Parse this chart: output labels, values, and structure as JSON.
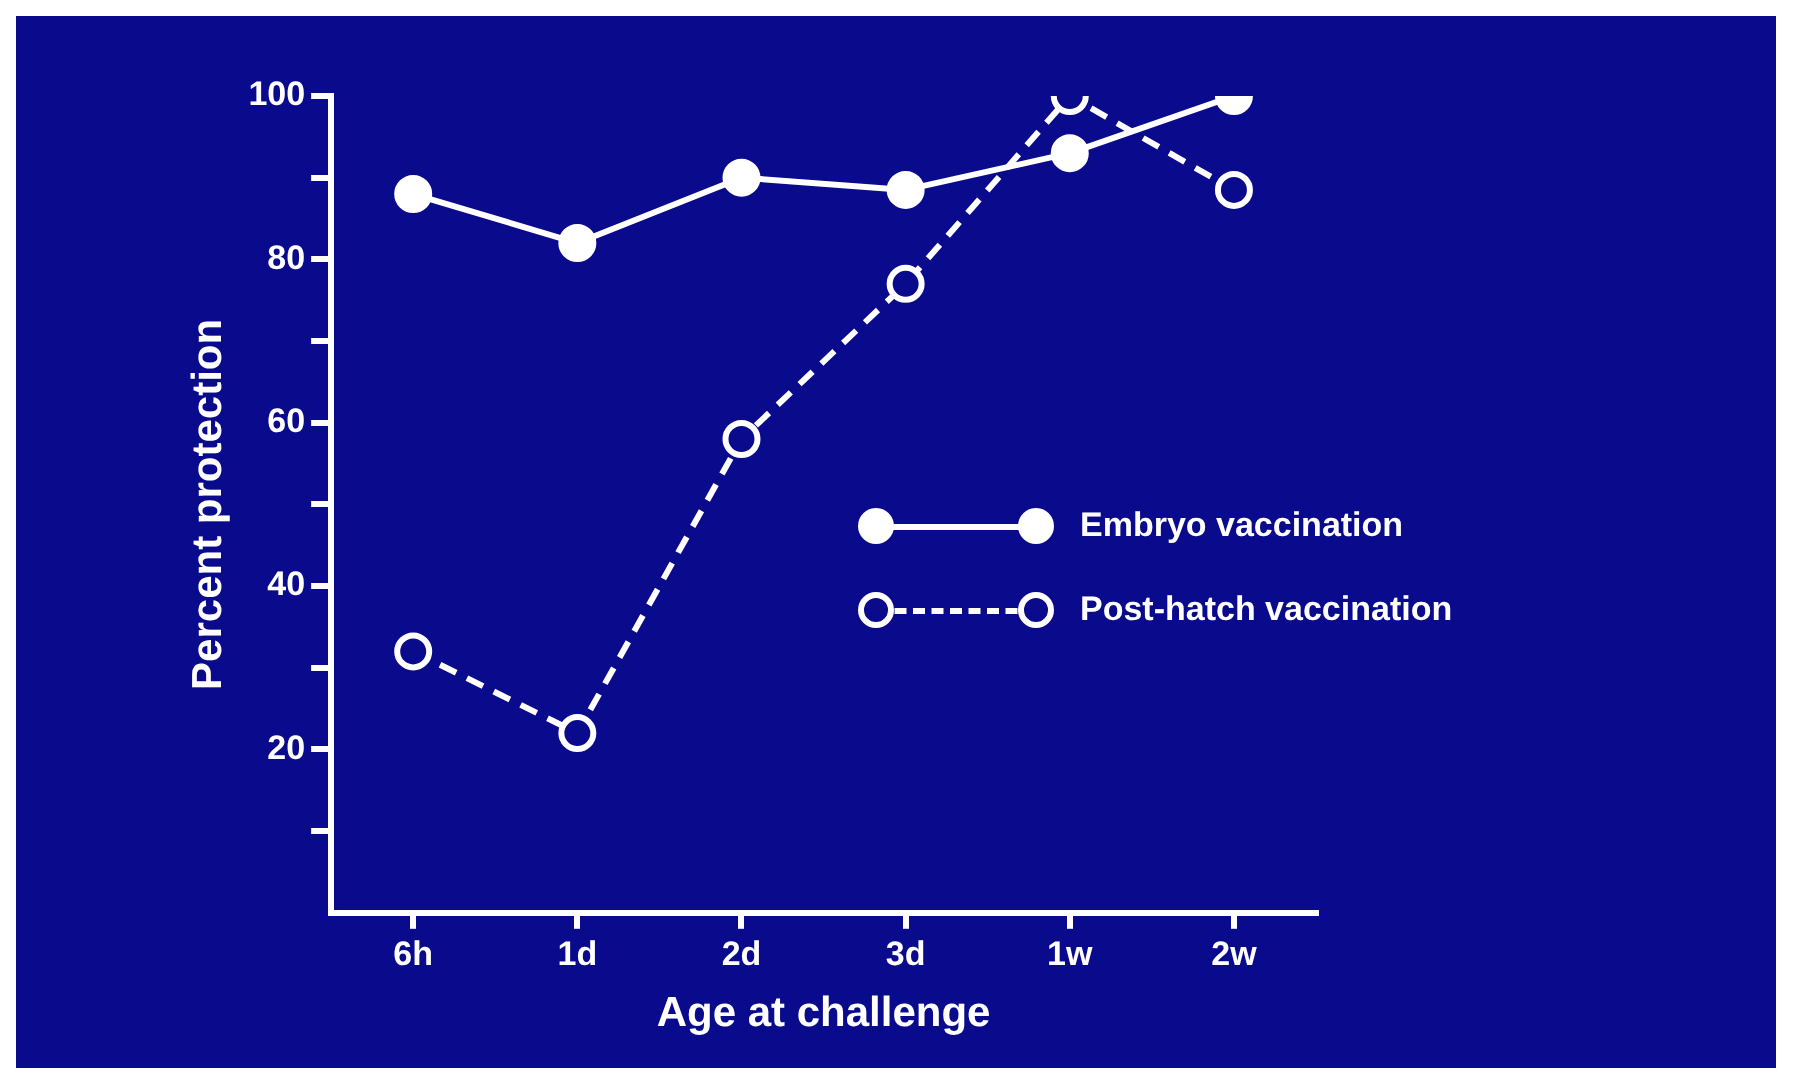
{
  "chart_data": {
    "type": "line",
    "xlabel": "Age at challenge",
    "ylabel": "Percent protection",
    "categories": [
      "6h",
      "1d",
      "2d",
      "3d",
      "1w",
      "2w"
    ],
    "series": [
      {
        "name": "Embryo vaccination",
        "color": "#ffffff",
        "values": [
          88,
          82,
          90,
          88.5,
          93,
          100
        ],
        "marker": "circle",
        "line_style": "solid"
      },
      {
        "name": "Post-hatch vaccination",
        "color": "#ffffff",
        "values": [
          32,
          22,
          58,
          77,
          100,
          88.5
        ],
        "marker": "circle",
        "line_style": "dashed"
      }
    ],
    "ylim": [
      0,
      100
    ],
    "yticks": [
      {
        "value": 10,
        "label": null
      },
      20,
      {
        "value": 30,
        "label": null
      },
      40,
      {
        "value": 50,
        "label": null
      },
      60,
      {
        "value": 70,
        "label": null
      },
      80,
      {
        "value": 90,
        "label": null
      },
      100
    ],
    "grid": false,
    "legend": "right"
  }
}
